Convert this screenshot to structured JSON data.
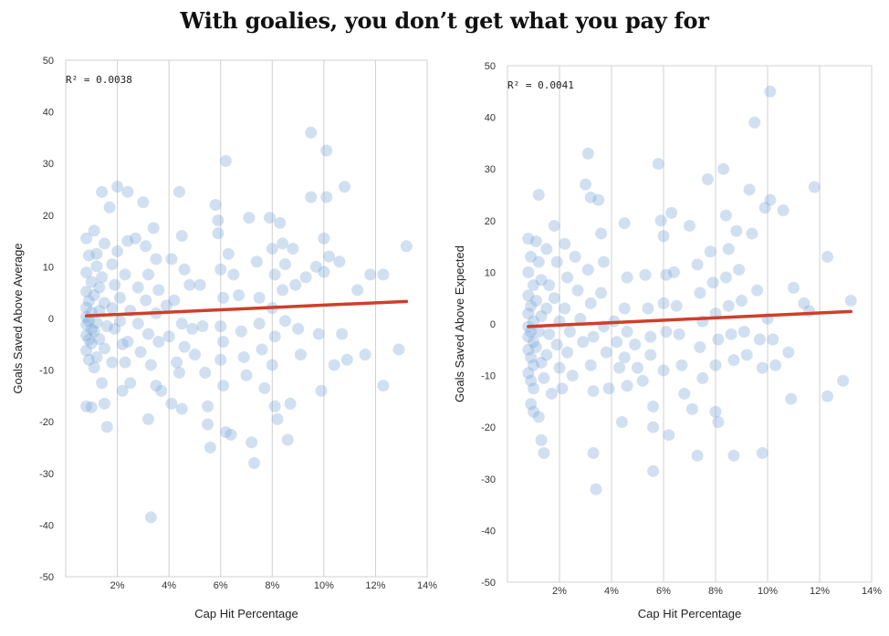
{
  "title": "With goalies, you don’t get what you pay for",
  "colors": {
    "points": "#7aa6d6",
    "trend": "#d03e2b",
    "grid": "#d0d0d0"
  },
  "chart_data": [
    {
      "type": "scatter",
      "xlabel": "Cap Hit Percentage",
      "ylabel": "Goals Saved Above Average",
      "annotation": "R² = 0.0038",
      "xlim": [
        0,
        14
      ],
      "ylim": [
        -50,
        50
      ],
      "xticks": [
        2,
        4,
        6,
        8,
        10,
        12,
        14
      ],
      "xtick_labels": [
        "2%",
        "4%",
        "6%",
        "8%",
        "10%",
        "12%",
        "14%"
      ],
      "yticks": [
        -50,
        -40,
        -30,
        -20,
        -10,
        0,
        10,
        20,
        30,
        40,
        50
      ],
      "grid": true,
      "trendline": {
        "x": [
          0.8,
          13.2
        ],
        "y": [
          0.5,
          3.3
        ]
      },
      "points": [
        [
          0.8,
          15.5
        ],
        [
          0.9,
          12.2
        ],
        [
          0.8,
          8.9
        ],
        [
          1.0,
          7.1
        ],
        [
          0.8,
          5.2
        ],
        [
          0.9,
          3.4
        ],
        [
          0.8,
          2.1
        ],
        [
          1.0,
          1.2
        ],
        [
          0.8,
          0.3
        ],
        [
          0.9,
          -0.5
        ],
        [
          0.8,
          -1.2
        ],
        [
          1.0,
          -2.1
        ],
        [
          0.8,
          -3.3
        ],
        [
          0.9,
          -4.1
        ],
        [
          1.0,
          -4.8
        ],
        [
          0.8,
          -6.2
        ],
        [
          0.9,
          -8.0
        ],
        [
          1.1,
          -9.5
        ],
        [
          0.8,
          -17.0
        ],
        [
          1.0,
          -17.2
        ],
        [
          1.1,
          17.0
        ],
        [
          1.2,
          12.5
        ],
        [
          1.2,
          10.1
        ],
        [
          1.3,
          6.0
        ],
        [
          1.1,
          4.5
        ],
        [
          1.3,
          1.5
        ],
        [
          1.2,
          -0.8
        ],
        [
          1.1,
          -2.5
        ],
        [
          1.3,
          -4.0
        ],
        [
          1.2,
          -7.5
        ],
        [
          1.4,
          24.5
        ],
        [
          1.5,
          14.5
        ],
        [
          1.4,
          8.0
        ],
        [
          1.5,
          3.0
        ],
        [
          1.6,
          -1.5
        ],
        [
          1.5,
          -5.8
        ],
        [
          1.4,
          -12.5
        ],
        [
          1.5,
          -16.5
        ],
        [
          1.6,
          -21.0
        ],
        [
          1.7,
          21.5
        ],
        [
          1.8,
          10.5
        ],
        [
          1.9,
          6.5
        ],
        [
          1.8,
          2.0
        ],
        [
          1.9,
          -2.0
        ],
        [
          1.8,
          -8.5
        ],
        [
          2.0,
          25.5
        ],
        [
          2.0,
          13.0
        ],
        [
          2.1,
          4.0
        ],
        [
          2.1,
          -0.5
        ],
        [
          2.2,
          -5.0
        ],
        [
          2.2,
          -14.0
        ],
        [
          2.4,
          24.5
        ],
        [
          2.4,
          15.0
        ],
        [
          2.3,
          8.5
        ],
        [
          2.5,
          1.5
        ],
        [
          2.4,
          -4.5
        ],
        [
          2.3,
          -8.5
        ],
        [
          2.5,
          -12.5
        ],
        [
          2.7,
          15.5
        ],
        [
          2.8,
          6.0
        ],
        [
          2.8,
          -1.0
        ],
        [
          2.9,
          -6.5
        ],
        [
          3.0,
          22.5
        ],
        [
          3.1,
          14.0
        ],
        [
          3.2,
          8.5
        ],
        [
          3.1,
          3.5
        ],
        [
          3.2,
          -3.0
        ],
        [
          3.3,
          -9.0
        ],
        [
          3.2,
          -19.5
        ],
        [
          3.3,
          -38.5
        ],
        [
          3.4,
          17.5
        ],
        [
          3.5,
          11.5
        ],
        [
          3.6,
          5.5
        ],
        [
          3.5,
          1.0
        ],
        [
          3.6,
          -4.5
        ],
        [
          3.5,
          -13.0
        ],
        [
          3.7,
          -14.0
        ],
        [
          3.9,
          2.5
        ],
        [
          4.0,
          -3.5
        ],
        [
          4.1,
          11.5
        ],
        [
          4.2,
          3.5
        ],
        [
          4.3,
          -8.5
        ],
        [
          4.1,
          -16.5
        ],
        [
          4.4,
          24.5
        ],
        [
          4.5,
          16.0
        ],
        [
          4.6,
          9.5
        ],
        [
          4.5,
          -1.0
        ],
        [
          4.6,
          -5.5
        ],
        [
          4.4,
          -10.5
        ],
        [
          4.5,
          -17.5
        ],
        [
          4.8,
          6.5
        ],
        [
          4.9,
          -2.0
        ],
        [
          5.0,
          -7.0
        ],
        [
          5.2,
          6.5
        ],
        [
          5.3,
          -1.5
        ],
        [
          5.4,
          -10.5
        ],
        [
          5.5,
          -17.0
        ],
        [
          5.5,
          -20.5
        ],
        [
          5.6,
          -25.0
        ],
        [
          5.8,
          22.0
        ],
        [
          5.9,
          19.0
        ],
        [
          5.9,
          16.5
        ],
        [
          6.0,
          9.5
        ],
        [
          6.1,
          4.0
        ],
        [
          6.0,
          -1.5
        ],
        [
          6.1,
          -4.5
        ],
        [
          6.0,
          -8.0
        ],
        [
          6.1,
          -13.0
        ],
        [
          6.2,
          30.5
        ],
        [
          6.3,
          12.5
        ],
        [
          6.2,
          -22.0
        ],
        [
          6.4,
          -22.5
        ],
        [
          6.5,
          8.5
        ],
        [
          6.7,
          4.5
        ],
        [
          6.8,
          -2.5
        ],
        [
          6.9,
          -7.5
        ],
        [
          7.0,
          -11.0
        ],
        [
          7.1,
          19.5
        ],
        [
          7.2,
          -24.0
        ],
        [
          7.3,
          -28.0
        ],
        [
          7.4,
          11.0
        ],
        [
          7.5,
          4.0
        ],
        [
          7.5,
          -1.0
        ],
        [
          7.6,
          -6.0
        ],
        [
          7.7,
          -13.5
        ],
        [
          7.9,
          19.5
        ],
        [
          8.0,
          13.5
        ],
        [
          8.1,
          8.5
        ],
        [
          8.0,
          2.0
        ],
        [
          8.1,
          -3.5
        ],
        [
          8.0,
          -9.0
        ],
        [
          8.1,
          -17.0
        ],
        [
          8.2,
          -19.5
        ],
        [
          8.3,
          18.5
        ],
        [
          8.4,
          14.5
        ],
        [
          8.5,
          10.5
        ],
        [
          8.4,
          5.5
        ],
        [
          8.5,
          -0.5
        ],
        [
          8.6,
          -23.5
        ],
        [
          8.7,
          -16.5
        ],
        [
          8.8,
          13.5
        ],
        [
          8.9,
          6.5
        ],
        [
          9.0,
          -2.0
        ],
        [
          9.1,
          -7.0
        ],
        [
          9.3,
          8.0
        ],
        [
          9.5,
          36.0
        ],
        [
          9.5,
          23.5
        ],
        [
          9.7,
          10.0
        ],
        [
          9.8,
          -3.0
        ],
        [
          9.9,
          -14.0
        ],
        [
          10.0,
          15.5
        ],
        [
          10.0,
          9.0
        ],
        [
          10.1,
          23.5
        ],
        [
          10.1,
          32.5
        ],
        [
          10.2,
          12.0
        ],
        [
          10.4,
          -9.0
        ],
        [
          10.6,
          11.0
        ],
        [
          10.7,
          -3.0
        ],
        [
          10.8,
          25.5
        ],
        [
          10.9,
          -8.0
        ],
        [
          11.3,
          5.5
        ],
        [
          11.6,
          -7.0
        ],
        [
          11.8,
          8.5
        ],
        [
          12.3,
          -13.0
        ],
        [
          12.3,
          8.5
        ],
        [
          12.9,
          -6.0
        ],
        [
          13.2,
          14.0
        ]
      ]
    },
    {
      "type": "scatter",
      "xlabel": "Cap Hit Percentage",
      "ylabel": "Goals Saved Above Expected",
      "annotation": "R² = 0.0041",
      "xlim": [
        0,
        14
      ],
      "ylim": [
        -50,
        50
      ],
      "xticks": [
        2,
        4,
        6,
        8,
        10,
        12,
        14
      ],
      "xtick_labels": [
        "2%",
        "4%",
        "6%",
        "8%",
        "10%",
        "12%",
        "14%"
      ],
      "yticks": [
        -50,
        -40,
        -30,
        -20,
        -10,
        0,
        10,
        20,
        30,
        40,
        50
      ],
      "grid": true,
      "trendline": {
        "x": [
          0.8,
          13.2
        ],
        "y": [
          -0.5,
          2.4
        ]
      },
      "points": [
        [
          0.8,
          16.5
        ],
        [
          0.9,
          13.0
        ],
        [
          0.8,
          10.0
        ],
        [
          1.0,
          7.5
        ],
        [
          0.8,
          5.5
        ],
        [
          0.9,
          3.5
        ],
        [
          0.8,
          2.0
        ],
        [
          1.0,
          0.5
        ],
        [
          0.8,
          -0.5
        ],
        [
          0.9,
          -1.5
        ],
        [
          0.8,
          -2.5
        ],
        [
          1.0,
          -3.5
        ],
        [
          0.8,
          -5.0
        ],
        [
          0.9,
          -6.5
        ],
        [
          1.0,
          -8.0
        ],
        [
          0.8,
          -9.5
        ],
        [
          0.9,
          -11.0
        ],
        [
          1.0,
          -12.5
        ],
        [
          0.9,
          -15.5
        ],
        [
          1.0,
          -17.0
        ],
        [
          1.2,
          25.0
        ],
        [
          1.1,
          16.0
        ],
        [
          1.2,
          12.0
        ],
        [
          1.3,
          8.5
        ],
        [
          1.1,
          4.5
        ],
        [
          1.3,
          1.5
        ],
        [
          1.2,
          -1.5
        ],
        [
          1.1,
          -4.5
        ],
        [
          1.3,
          -7.5
        ],
        [
          1.4,
          -10.5
        ],
        [
          1.2,
          -18.0
        ],
        [
          1.3,
          -22.5
        ],
        [
          1.4,
          -25.0
        ],
        [
          1.5,
          14.5
        ],
        [
          1.6,
          7.5
        ],
        [
          1.5,
          3.0
        ],
        [
          1.6,
          -2.0
        ],
        [
          1.5,
          -6.0
        ],
        [
          1.7,
          -13.5
        ],
        [
          1.8,
          19.0
        ],
        [
          1.9,
          12.0
        ],
        [
          1.8,
          5.0
        ],
        [
          2.0,
          0.5
        ],
        [
          1.9,
          -4.0
        ],
        [
          2.0,
          -8.5
        ],
        [
          2.1,
          -12.5
        ],
        [
          2.2,
          15.5
        ],
        [
          2.3,
          9.0
        ],
        [
          2.2,
          3.0
        ],
        [
          2.4,
          -1.5
        ],
        [
          2.3,
          -5.5
        ],
        [
          2.5,
          -10.0
        ],
        [
          2.6,
          13.0
        ],
        [
          2.7,
          6.5
        ],
        [
          2.8,
          1.0
        ],
        [
          2.9,
          -3.5
        ],
        [
          3.0,
          27.0
        ],
        [
          3.1,
          33.0
        ],
        [
          3.2,
          24.5
        ],
        [
          3.1,
          10.5
        ],
        [
          3.2,
          4.0
        ],
        [
          3.3,
          -2.5
        ],
        [
          3.2,
          -8.0
        ],
        [
          3.3,
          -13.0
        ],
        [
          3.3,
          -25.0
        ],
        [
          3.4,
          -32.0
        ],
        [
          3.5,
          24.0
        ],
        [
          3.6,
          17.5
        ],
        [
          3.7,
          12.0
        ],
        [
          3.6,
          6.0
        ],
        [
          3.7,
          -0.5
        ],
        [
          3.8,
          -5.5
        ],
        [
          3.9,
          -12.5
        ],
        [
          4.1,
          0.5
        ],
        [
          4.2,
          -3.5
        ],
        [
          4.3,
          -8.5
        ],
        [
          4.5,
          19.5
        ],
        [
          4.6,
          9.0
        ],
        [
          4.5,
          3.0
        ],
        [
          4.6,
          -1.5
        ],
        [
          4.5,
          -6.5
        ],
        [
          4.6,
          -12.0
        ],
        [
          4.4,
          -19.0
        ],
        [
          4.9,
          -4.0
        ],
        [
          5.0,
          -8.5
        ],
        [
          5.2,
          -11.0
        ],
        [
          5.3,
          9.5
        ],
        [
          5.4,
          3.0
        ],
        [
          5.5,
          -2.5
        ],
        [
          5.5,
          -6.0
        ],
        [
          5.6,
          -16.0
        ],
        [
          5.6,
          -20.0
        ],
        [
          5.6,
          -28.5
        ],
        [
          5.8,
          31.0
        ],
        [
          5.9,
          20.0
        ],
        [
          6.0,
          17.0
        ],
        [
          6.1,
          9.5
        ],
        [
          6.0,
          4.0
        ],
        [
          6.1,
          -1.5
        ],
        [
          6.0,
          -9.0
        ],
        [
          6.2,
          -21.5
        ],
        [
          6.3,
          21.5
        ],
        [
          6.4,
          10.0
        ],
        [
          6.5,
          3.5
        ],
        [
          6.6,
          -2.0
        ],
        [
          6.7,
          -8.0
        ],
        [
          6.8,
          -13.5
        ],
        [
          7.0,
          19.0
        ],
        [
          7.1,
          -16.5
        ],
        [
          7.3,
          11.5
        ],
        [
          7.4,
          6.0
        ],
        [
          7.5,
          0.5
        ],
        [
          7.4,
          -4.5
        ],
        [
          7.5,
          -10.5
        ],
        [
          7.3,
          -25.5
        ],
        [
          7.7,
          28.0
        ],
        [
          7.8,
          14.0
        ],
        [
          7.9,
          8.0
        ],
        [
          8.0,
          2.0
        ],
        [
          8.1,
          -3.0
        ],
        [
          8.0,
          -8.0
        ],
        [
          8.0,
          -17.0
        ],
        [
          8.1,
          -19.0
        ],
        [
          8.3,
          30.0
        ],
        [
          8.4,
          21.0
        ],
        [
          8.5,
          14.5
        ],
        [
          8.4,
          9.0
        ],
        [
          8.5,
          3.5
        ],
        [
          8.6,
          -2.0
        ],
        [
          8.7,
          -7.0
        ],
        [
          8.7,
          -25.5
        ],
        [
          8.8,
          18.0
        ],
        [
          8.9,
          10.5
        ],
        [
          9.0,
          4.5
        ],
        [
          9.1,
          -1.5
        ],
        [
          9.2,
          -6.0
        ],
        [
          9.3,
          26.0
        ],
        [
          9.4,
          17.5
        ],
        [
          9.5,
          39.0
        ],
        [
          9.6,
          6.5
        ],
        [
          9.7,
          -3.0
        ],
        [
          9.8,
          -8.5
        ],
        [
          9.8,
          -25.0
        ],
        [
          9.9,
          22.5
        ],
        [
          10.1,
          45.0
        ],
        [
          10.1,
          24.0
        ],
        [
          10.0,
          1.0
        ],
        [
          10.2,
          -3.0
        ],
        [
          10.3,
          -8.0
        ],
        [
          10.6,
          22.0
        ],
        [
          10.8,
          -5.5
        ],
        [
          10.9,
          -14.5
        ],
        [
          11.0,
          7.0
        ],
        [
          11.4,
          4.0
        ],
        [
          11.6,
          2.5
        ],
        [
          11.8,
          26.5
        ],
        [
          12.3,
          13.0
        ],
        [
          12.3,
          -14.0
        ],
        [
          12.9,
          -11.0
        ],
        [
          13.2,
          4.5
        ]
      ]
    }
  ]
}
